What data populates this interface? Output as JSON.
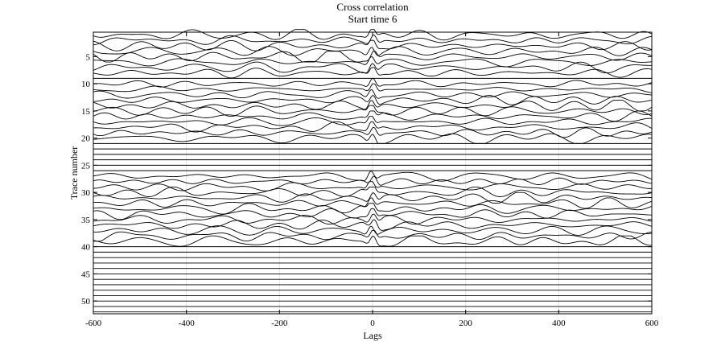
{
  "chart_data": {
    "type": "line",
    "title": "Cross correlation",
    "subtitle": "Start time 6",
    "xlabel": "Lags",
    "ylabel": "Trace number",
    "xlim": [
      -600,
      600
    ],
    "ylim": [
      1,
      52
    ],
    "y_reversed": true,
    "grid": true,
    "legend": "none",
    "x_ticks": [
      -600,
      -400,
      -200,
      0,
      200,
      400,
      600
    ],
    "y_ticks": [
      5,
      10,
      15,
      20,
      25,
      30,
      35,
      40,
      45,
      50
    ],
    "x_tick_labels": [
      "-600",
      "-400",
      "-200",
      "0",
      "200",
      "400",
      "600"
    ],
    "y_tick_labels": [
      "5",
      "10",
      "15",
      "20",
      "25",
      "30",
      "35",
      "40",
      "45",
      "50"
    ],
    "trace_count": 52,
    "trace_spacing": 1,
    "active_trace_ranges": [
      [
        1,
        8
      ],
      [
        10,
        20
      ],
      [
        27,
        39
      ]
    ],
    "flat_trace_ranges": [
      [
        9,
        9
      ],
      [
        21,
        26
      ],
      [
        40,
        52
      ]
    ],
    "main_peak_lag": 0,
    "line_color": "#000000"
  }
}
